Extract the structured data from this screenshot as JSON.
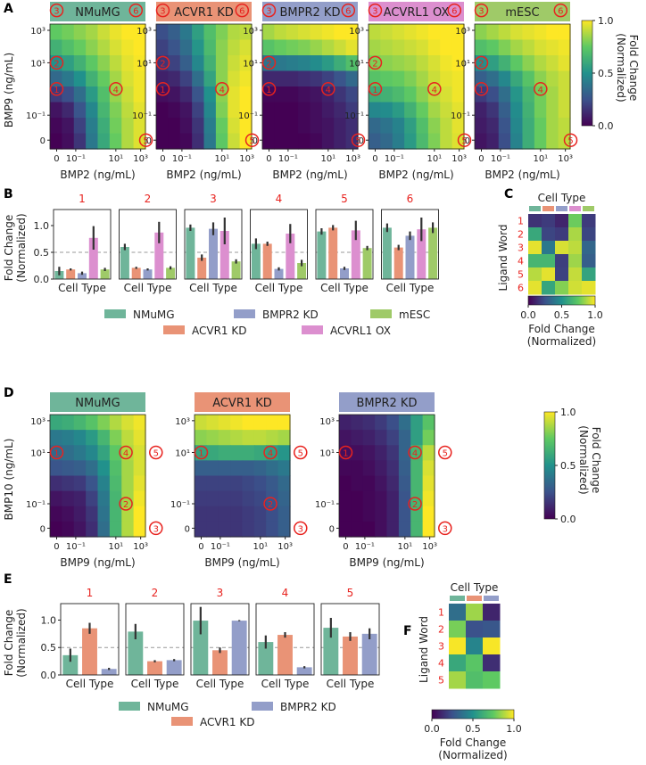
{
  "colors": {
    "cell_type": {
      "NMuMG": "#6fb59a",
      "ACVR1 KD": "#e99376",
      "BMPR2 KD": "#939ec9",
      "ACVRL1 OX": "#dc8fcf",
      "mESC": "#9fca68"
    },
    "word_number": "#e8231f",
    "ref_line": "#999999",
    "error_bar": "#333333"
  },
  "chart_data": [
    {
      "panel": "A",
      "type": "heatmap",
      "titles": [
        "NMuMG",
        "ACVR1 KD",
        "BMPR2 KD",
        "ACVRL1 OX",
        "mESC"
      ],
      "xlabel": "BMP2 (ng/mL)",
      "ylabel": "BMP9 (ng/mL)",
      "x_ticks": [
        "0",
        "10⁻¹",
        "10¹",
        "10³"
      ],
      "y_ticks": [
        "10³",
        "10¹",
        "10⁻¹",
        "0"
      ],
      "markers": [
        {
          "label": "1",
          "x": 0.0,
          "y": 1.0
        },
        {
          "label": "2",
          "x": 0.0,
          "y": 10.0
        },
        {
          "label": "3",
          "x": 0.0,
          "y": 1000.0
        },
        {
          "label": "4",
          "x": 10.0,
          "y": 1.0
        },
        {
          "label": "5",
          "x": 316.0,
          "y": 0.0
        },
        {
          "label": "6",
          "x": 100.0,
          "y": 1000.0
        }
      ],
      "matrices": [
        [
          [
            0.75,
            0.78,
            0.82,
            0.86,
            0.92,
            0.97,
            1.0,
            1.0
          ],
          [
            0.64,
            0.7,
            0.76,
            0.82,
            0.88,
            0.94,
            0.98,
            1.0
          ],
          [
            0.5,
            0.56,
            0.64,
            0.74,
            0.82,
            0.9,
            0.96,
            0.99
          ],
          [
            0.34,
            0.4,
            0.5,
            0.64,
            0.76,
            0.86,
            0.94,
            0.98
          ],
          [
            0.18,
            0.24,
            0.36,
            0.54,
            0.7,
            0.84,
            0.92,
            0.98
          ],
          [
            0.06,
            0.12,
            0.26,
            0.46,
            0.66,
            0.8,
            0.9,
            0.96
          ],
          [
            0.02,
            0.06,
            0.2,
            0.42,
            0.62,
            0.78,
            0.88,
            0.95
          ],
          [
            0.0,
            0.04,
            0.16,
            0.4,
            0.6,
            0.76,
            0.88,
            0.95
          ]
        ],
        [
          [
            0.24,
            0.3,
            0.4,
            0.56,
            0.7,
            0.8,
            0.88,
            0.9
          ],
          [
            0.2,
            0.26,
            0.36,
            0.52,
            0.68,
            0.82,
            0.9,
            0.94
          ],
          [
            0.16,
            0.2,
            0.3,
            0.46,
            0.64,
            0.82,
            0.92,
            0.96
          ],
          [
            0.1,
            0.12,
            0.2,
            0.36,
            0.58,
            0.82,
            0.94,
            0.98
          ],
          [
            0.04,
            0.06,
            0.12,
            0.26,
            0.5,
            0.82,
            0.96,
            1.0
          ],
          [
            0.0,
            0.02,
            0.06,
            0.2,
            0.46,
            0.8,
            0.96,
            1.0
          ],
          [
            0.0,
            0.0,
            0.04,
            0.16,
            0.42,
            0.76,
            0.94,
            1.0
          ],
          [
            0.0,
            0.0,
            0.02,
            0.14,
            0.4,
            0.74,
            0.92,
            1.0
          ]
        ],
        [
          [
            0.86,
            0.9,
            0.92,
            0.94,
            0.96,
            0.98,
            1.0,
            1.0
          ],
          [
            0.72,
            0.76,
            0.78,
            0.8,
            0.84,
            0.88,
            0.92,
            0.96
          ],
          [
            0.38,
            0.4,
            0.42,
            0.44,
            0.48,
            0.54,
            0.62,
            0.7
          ],
          [
            0.12,
            0.12,
            0.12,
            0.14,
            0.16,
            0.2,
            0.26,
            0.34
          ],
          [
            0.02,
            0.02,
            0.02,
            0.04,
            0.06,
            0.1,
            0.16,
            0.22
          ],
          [
            0.0,
            0.0,
            0.0,
            0.02,
            0.04,
            0.08,
            0.12,
            0.18
          ],
          [
            0.0,
            0.0,
            0.0,
            0.02,
            0.04,
            0.06,
            0.1,
            0.14
          ],
          [
            0.0,
            0.0,
            0.0,
            0.0,
            0.02,
            0.06,
            0.1,
            0.14
          ]
        ],
        [
          [
            0.9,
            0.92,
            0.94,
            0.96,
            0.98,
            1.0,
            1.0,
            1.0
          ],
          [
            0.86,
            0.88,
            0.9,
            0.92,
            0.94,
            0.98,
            1.0,
            1.0
          ],
          [
            0.8,
            0.82,
            0.84,
            0.86,
            0.9,
            0.94,
            0.98,
            1.0
          ],
          [
            0.72,
            0.74,
            0.76,
            0.8,
            0.86,
            0.92,
            0.96,
            0.98
          ],
          [
            0.62,
            0.64,
            0.68,
            0.74,
            0.82,
            0.9,
            0.94,
            0.98
          ],
          [
            0.46,
            0.48,
            0.54,
            0.64,
            0.76,
            0.86,
            0.92,
            0.96
          ],
          [
            0.34,
            0.38,
            0.44,
            0.56,
            0.7,
            0.82,
            0.9,
            0.96
          ],
          [
            0.3,
            0.34,
            0.42,
            0.54,
            0.68,
            0.8,
            0.9,
            0.95
          ]
        ],
        [
          [
            0.82,
            0.86,
            0.9,
            0.94,
            0.96,
            0.98,
            1.0,
            1.0
          ],
          [
            0.7,
            0.74,
            0.8,
            0.86,
            0.9,
            0.94,
            0.96,
            0.98
          ],
          [
            0.5,
            0.56,
            0.64,
            0.74,
            0.82,
            0.88,
            0.92,
            0.96
          ],
          [
            0.3,
            0.36,
            0.46,
            0.6,
            0.72,
            0.82,
            0.88,
            0.92
          ],
          [
            0.18,
            0.24,
            0.36,
            0.52,
            0.66,
            0.78,
            0.86,
            0.92
          ],
          [
            0.1,
            0.16,
            0.3,
            0.48,
            0.64,
            0.78,
            0.86,
            0.92
          ],
          [
            0.08,
            0.12,
            0.26,
            0.46,
            0.62,
            0.76,
            0.86,
            0.9
          ],
          [
            0.06,
            0.1,
            0.24,
            0.44,
            0.62,
            0.76,
            0.86,
            0.9
          ]
        ]
      ],
      "colorbar": {
        "label": "Fold Change\n(Normalized)",
        "ticks": [
          "0.0",
          "0.5",
          "1.0"
        ],
        "range": [
          0,
          1
        ]
      }
    },
    {
      "panel": "B",
      "type": "bar",
      "group_titles": [
        "1",
        "2",
        "3",
        "4",
        "5",
        "6"
      ],
      "xlabel": "Cell Type",
      "ylabel": "Fold Change\n(Normalized)",
      "ylim": [
        0,
        1.3
      ],
      "yticks": [
        "0.0",
        "0.5",
        "1.0"
      ],
      "ref_line": 0.5,
      "series_names": [
        "NMuMG",
        "ACVR1 KD",
        "BMPR2 KD",
        "ACVRL1 OX",
        "mESC"
      ],
      "values": [
        [
          0.15,
          0.18,
          0.11,
          0.77,
          0.18
        ],
        [
          0.6,
          0.21,
          0.18,
          0.87,
          0.21
        ],
        [
          0.96,
          0.4,
          0.94,
          0.9,
          0.33
        ],
        [
          0.66,
          0.66,
          0.19,
          0.85,
          0.3
        ],
        [
          0.89,
          0.96,
          0.2,
          0.91,
          0.58
        ],
        [
          0.96,
          0.59,
          0.81,
          0.93,
          0.96
        ]
      ],
      "errors": [
        [
          0.08,
          0.02,
          0.03,
          0.22,
          0.03
        ],
        [
          0.06,
          0.02,
          0.02,
          0.2,
          0.03
        ],
        [
          0.06,
          0.06,
          0.12,
          0.25,
          0.04
        ],
        [
          0.1,
          0.04,
          0.03,
          0.18,
          0.06
        ],
        [
          0.06,
          0.05,
          0.03,
          0.18,
          0.04
        ],
        [
          0.08,
          0.05,
          0.08,
          0.22,
          0.1
        ]
      ]
    },
    {
      "panel": "C",
      "type": "heatmap",
      "title": "Cell Type",
      "ylabel": "Ligand Word",
      "rows": [
        "1",
        "2",
        "3",
        "4",
        "5",
        "6"
      ],
      "columns": [
        "NMuMG",
        "ACVR1 KD",
        "BMPR2 KD",
        "ACVRL1 OX",
        "mESC"
      ],
      "values": [
        [
          0.15,
          0.18,
          0.11,
          0.77,
          0.18
        ],
        [
          0.6,
          0.21,
          0.18,
          0.87,
          0.21
        ],
        [
          0.96,
          0.4,
          0.94,
          0.9,
          0.33
        ],
        [
          0.66,
          0.66,
          0.19,
          0.85,
          0.3
        ],
        [
          0.89,
          0.96,
          0.2,
          0.91,
          0.58
        ],
        [
          0.96,
          0.59,
          0.81,
          0.93,
          0.96
        ]
      ],
      "colorbar": {
        "label": "Fold Change\n(Normalized)",
        "ticks": [
          "0.0",
          "0.5",
          "1.0"
        ],
        "range": [
          0,
          1
        ]
      }
    },
    {
      "panel": "D",
      "type": "heatmap",
      "titles": [
        "NMuMG",
        "ACVR1 KD",
        "BMPR2 KD"
      ],
      "xlabel": "BMP9 (ng/mL)",
      "ylabel": "BMP10 (ng/mL)",
      "x_ticks": [
        "0",
        "10⁻¹",
        "10¹",
        "10³"
      ],
      "y_ticks": [
        "10³",
        "10¹",
        "10⁻¹",
        "0"
      ],
      "markers": [
        {
          "label": "1",
          "x": 0.0,
          "y": 10.0
        },
        {
          "label": "2",
          "x": 31.6,
          "y": 0.1
        },
        {
          "label": "3",
          "x": 1000.0,
          "y": 0.0
        },
        {
          "label": "4",
          "x": 31.6,
          "y": 10.0
        },
        {
          "label": "5",
          "x": 1000.0,
          "y": 10.0
        }
      ],
      "matrices": [
        [
          [
            0.6,
            0.62,
            0.66,
            0.72,
            0.8,
            0.88,
            0.94,
            0.98
          ],
          [
            0.4,
            0.42,
            0.46,
            0.54,
            0.66,
            0.8,
            0.9,
            0.96
          ],
          [
            0.34,
            0.36,
            0.4,
            0.46,
            0.58,
            0.74,
            0.88,
            0.94
          ],
          [
            0.26,
            0.28,
            0.3,
            0.36,
            0.5,
            0.7,
            0.86,
            0.94
          ],
          [
            0.14,
            0.16,
            0.18,
            0.26,
            0.44,
            0.68,
            0.86,
            0.96
          ],
          [
            0.06,
            0.08,
            0.1,
            0.2,
            0.4,
            0.66,
            0.86,
            0.98
          ],
          [
            0.02,
            0.04,
            0.08,
            0.16,
            0.38,
            0.66,
            0.88,
            1.0
          ],
          [
            0.0,
            0.02,
            0.06,
            0.14,
            0.36,
            0.66,
            0.88,
            1.0
          ]
        ],
        [
          [
            0.92,
            0.94,
            0.96,
            0.98,
            1.0,
            1.0,
            1.0,
            1.0
          ],
          [
            0.82,
            0.84,
            0.86,
            0.88,
            0.9,
            0.9,
            0.88,
            0.86
          ],
          [
            0.58,
            0.6,
            0.62,
            0.62,
            0.62,
            0.6,
            0.56,
            0.52
          ],
          [
            0.3,
            0.3,
            0.3,
            0.3,
            0.3,
            0.32,
            0.36,
            0.4
          ],
          [
            0.2,
            0.2,
            0.2,
            0.2,
            0.22,
            0.24,
            0.28,
            0.34
          ],
          [
            0.18,
            0.18,
            0.18,
            0.18,
            0.2,
            0.22,
            0.26,
            0.32
          ],
          [
            0.16,
            0.16,
            0.16,
            0.16,
            0.18,
            0.2,
            0.24,
            0.3
          ],
          [
            0.16,
            0.16,
            0.16,
            0.16,
            0.18,
            0.2,
            0.24,
            0.3
          ]
        ],
        [
          [
            0.1,
            0.12,
            0.14,
            0.18,
            0.24,
            0.36,
            0.56,
            0.72
          ],
          [
            0.06,
            0.08,
            0.1,
            0.14,
            0.2,
            0.32,
            0.56,
            0.78
          ],
          [
            0.04,
            0.04,
            0.06,
            0.1,
            0.16,
            0.32,
            0.66,
            0.9
          ],
          [
            0.02,
            0.02,
            0.04,
            0.08,
            0.14,
            0.3,
            0.66,
            0.94
          ],
          [
            0.0,
            0.02,
            0.02,
            0.06,
            0.12,
            0.28,
            0.66,
            0.96
          ],
          [
            0.0,
            0.0,
            0.02,
            0.04,
            0.1,
            0.26,
            0.66,
            0.98
          ],
          [
            0.0,
            0.0,
            0.02,
            0.04,
            0.1,
            0.26,
            0.66,
            1.0
          ],
          [
            0.0,
            0.0,
            0.0,
            0.04,
            0.1,
            0.26,
            0.66,
            1.0
          ]
        ]
      ],
      "colorbar": {
        "label": "Fold Change\n(Normalized)",
        "ticks": [
          "0.0",
          "0.5",
          "1.0"
        ],
        "range": [
          0,
          1
        ]
      }
    },
    {
      "panel": "E",
      "type": "bar",
      "group_titles": [
        "1",
        "2",
        "3",
        "4",
        "5"
      ],
      "xlabel": "Cell Type",
      "ylabel": "Fold Change\n(Normalized)",
      "ylim": [
        0,
        1.3
      ],
      "yticks": [
        "0.0",
        "0.5",
        "1.0"
      ],
      "ref_line": 0.5,
      "series_names": [
        "NMuMG",
        "ACVR1 KD",
        "BMPR2 KD"
      ],
      "values": [
        [
          0.36,
          0.85,
          0.11
        ],
        [
          0.79,
          0.25,
          0.27
        ],
        [
          0.99,
          0.45,
          0.99
        ],
        [
          0.6,
          0.73,
          0.14
        ],
        [
          0.86,
          0.7,
          0.75
        ]
      ],
      "errors": [
        [
          0.12,
          0.1,
          0.02
        ],
        [
          0.14,
          0.02,
          0.02
        ],
        [
          0.25,
          0.05,
          0.01
        ],
        [
          0.12,
          0.05,
          0.02
        ],
        [
          0.18,
          0.08,
          0.1
        ]
      ]
    },
    {
      "panel": "F",
      "type": "heatmap",
      "title": "Cell Type",
      "ylabel": "Ligand Word",
      "rows": [
        "1",
        "2",
        "3",
        "4",
        "5"
      ],
      "columns": [
        "NMuMG",
        "ACVR1 KD",
        "BMPR2 KD"
      ],
      "values": [
        [
          0.36,
          0.85,
          0.11
        ],
        [
          0.79,
          0.25,
          0.27
        ],
        [
          0.99,
          0.45,
          0.99
        ],
        [
          0.6,
          0.73,
          0.14
        ],
        [
          0.86,
          0.7,
          0.75
        ]
      ],
      "colorbar": {
        "label": "Fold Change\n(Normalized)",
        "ticks": [
          "0.0",
          "0.5",
          "1.0"
        ],
        "range": [
          0,
          1
        ]
      }
    }
  ]
}
